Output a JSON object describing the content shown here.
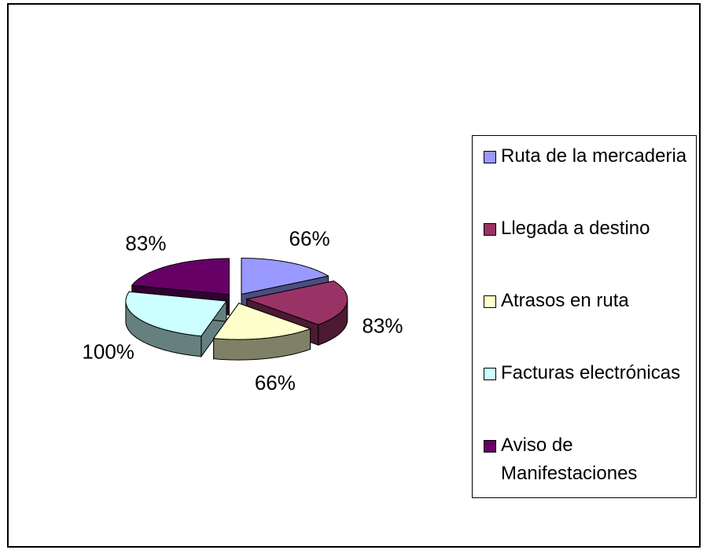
{
  "chart_data": {
    "type": "pie3d",
    "categories": [
      "Ruta de la mercaderia",
      "Llegada a destino",
      "Atrasos en ruta",
      "Facturas electrónicas",
      "Aviso de Manifestaciones"
    ],
    "values": [
      66,
      83,
      66,
      100,
      83
    ],
    "value_labels": [
      "66%",
      "83%",
      "66%",
      "100%",
      "83%"
    ],
    "colors": [
      "#9999ff",
      "#993366",
      "#ffffcc",
      "#ccffff",
      "#660066"
    ],
    "legend": "right"
  }
}
